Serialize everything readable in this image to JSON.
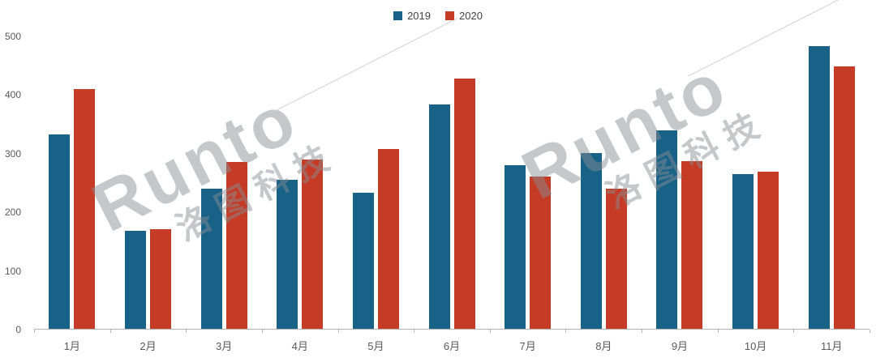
{
  "chart_data": {
    "type": "bar",
    "title": "",
    "xlabel": "",
    "ylabel": "",
    "categories": [
      "1月",
      "2月",
      "3月",
      "4月",
      "5月",
      "6月",
      "7月",
      "8月",
      "9月",
      "10月",
      "11月"
    ],
    "series": [
      {
        "name": "2019",
        "color": "#186287",
        "values": [
          332,
          167,
          239,
          255,
          233,
          383,
          280,
          300,
          339,
          265,
          483
        ]
      },
      {
        "name": "2020",
        "color": "#c53b26",
        "values": [
          410,
          171,
          286,
          289,
          308,
          428,
          261,
          240,
          287,
          269,
          449
        ]
      }
    ],
    "ylim": [
      0,
      500
    ],
    "yticks": [
      0,
      100,
      200,
      300,
      400,
      500
    ],
    "grid": false,
    "legend_position": "top-center"
  },
  "watermark": {
    "brand": "Runto",
    "cn": "洛图科技"
  },
  "colors": {
    "axis": "#b3b3b3",
    "tick_text": "#595959",
    "legend_text": "#404040",
    "watermark": "#878d94"
  }
}
